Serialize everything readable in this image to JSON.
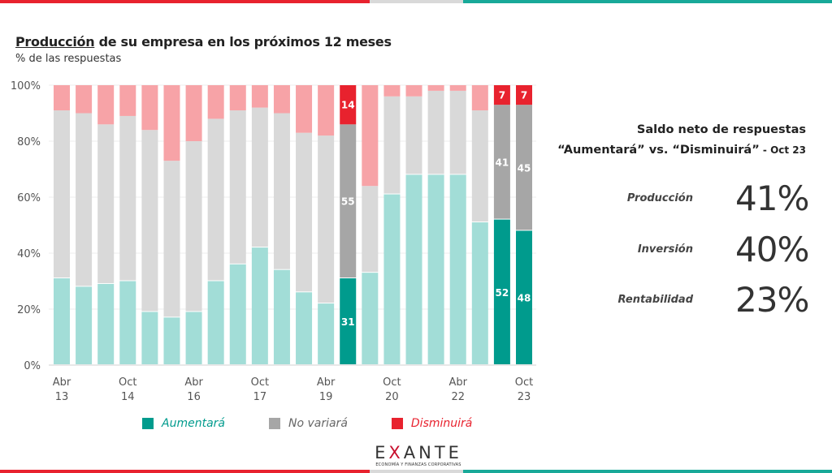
{
  "header": {
    "title_underlined": "Producción",
    "title_rest": " de su empresa en los próximos 12 meses",
    "subtitle": "% de las respuestas"
  },
  "colors": {
    "aumentara": "#009b8d",
    "aumentara_light": "#a2ddd7",
    "no_variara": "#a6a6a6",
    "no_variara_light": "#d9d9d9",
    "disminuira": "#e8222e",
    "disminuira_light": "#f7a3a7",
    "stripe_red": "#e8222e",
    "stripe_teal": "#18a999",
    "stripe_grey": "#d9d9d9"
  },
  "chart_data": {
    "type": "bar",
    "stacked": true,
    "ylim": [
      0,
      100
    ],
    "yticks": [
      "0%",
      "20%",
      "40%",
      "60%",
      "80%",
      "100%"
    ],
    "grid": true,
    "categories": [
      "Abr 13",
      "",
      "",
      "Oct 14",
      "",
      "",
      "Abr 16",
      "",
      "",
      "Oct 17",
      "",
      "",
      "Abr 19",
      "",
      "",
      "Oct 20",
      "",
      "",
      "Abr 22",
      "",
      "",
      "Oct 23"
    ],
    "highlighted": [
      13,
      20,
      21
    ],
    "series": [
      {
        "name": "Aumentará",
        "values": [
          31,
          28,
          29,
          30,
          19,
          17,
          19,
          30,
          36,
          42,
          34,
          26,
          22,
          31,
          33,
          61,
          68,
          68,
          68,
          51,
          52,
          48
        ]
      },
      {
        "name": "No variará",
        "values": [
          60,
          62,
          57,
          59,
          65,
          56,
          61,
          58,
          55,
          50,
          56,
          57,
          60,
          55,
          31,
          35,
          28,
          30,
          30,
          40,
          41,
          45
        ]
      },
      {
        "name": "Disminuirá",
        "values": [
          9,
          10,
          14,
          11,
          16,
          27,
          20,
          12,
          9,
          8,
          10,
          17,
          18,
          14,
          36,
          4,
          4,
          2,
          2,
          9,
          7,
          7
        ]
      }
    ],
    "legend": "bottom"
  },
  "legend": {
    "items": [
      "Aumentará",
      "No variará",
      "Disminuirá"
    ]
  },
  "summary": {
    "title_line1": "Saldo neto de respuestas",
    "title_line2": "“Aumentará” vs. “Disminuirá”",
    "title_suffix": " - Oct 23",
    "metrics": [
      {
        "label": "Producción",
        "value": "41%"
      },
      {
        "label": "Inversión",
        "value": "40%"
      },
      {
        "label": "Rentabilidad",
        "value": "23%"
      }
    ]
  },
  "logo": {
    "name_pre": "E",
    "name_x": "X",
    "name_post": "ANTE",
    "tagline": "ECONOMÍA Y FINANZAS CORPORATIVAS"
  }
}
